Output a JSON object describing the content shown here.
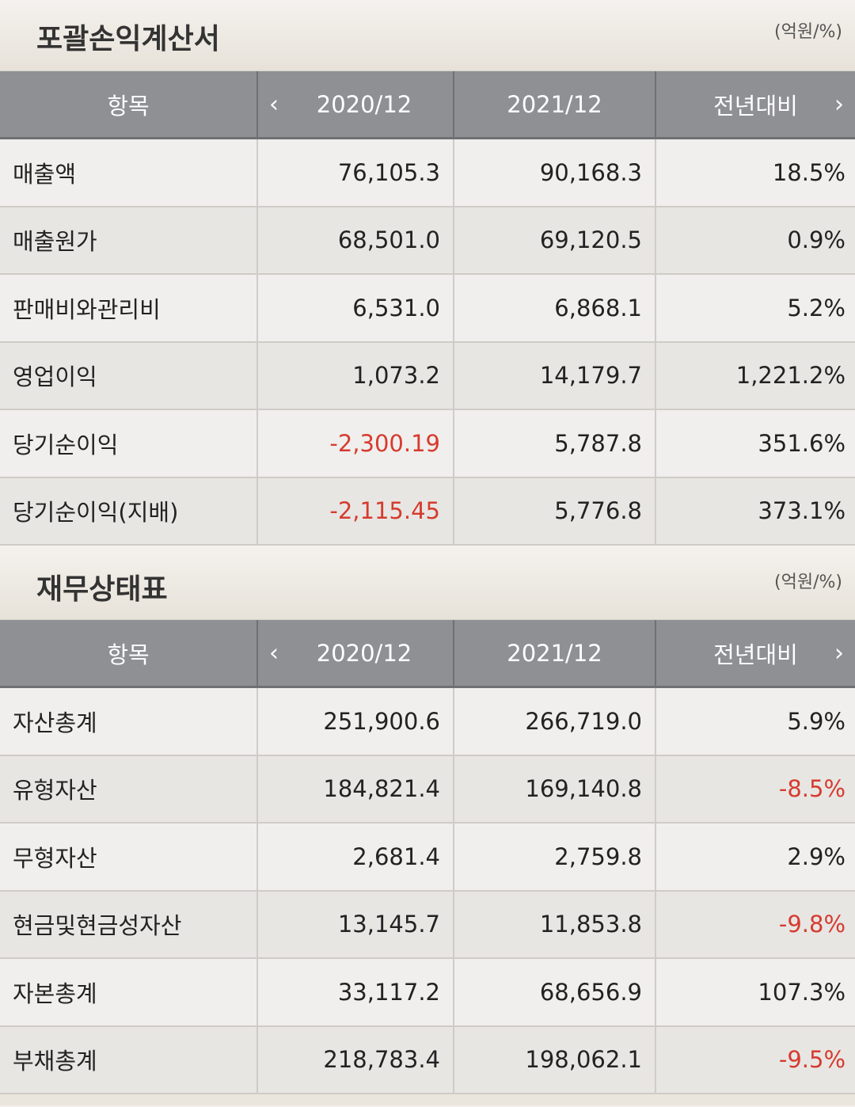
{
  "income": {
    "title": "포괄손익계산서",
    "unit": "(억원/%)",
    "headers": {
      "item": "항목",
      "col1": "2020/12",
      "col2": "2021/12",
      "col3": "전년대비"
    },
    "rows": [
      {
        "label": "매출액",
        "v1": "76,105.3",
        "v2": "90,168.3",
        "v3": "18.5%"
      },
      {
        "label": "매출원가",
        "v1": "68,501.0",
        "v2": "69,120.5",
        "v3": "0.9%"
      },
      {
        "label": "판매비와관리비",
        "v1": "6,531.0",
        "v2": "6,868.1",
        "v3": "5.2%"
      },
      {
        "label": "영업이익",
        "v1": "1,073.2",
        "v2": "14,179.7",
        "v3": "1,221.2%"
      },
      {
        "label": "당기순이익",
        "v1": "-2,300.19",
        "v2": "5,787.8",
        "v3": "351.6%"
      },
      {
        "label": "당기순이익(지배)",
        "v1": "-2,115.45",
        "v2": "5,776.8",
        "v3": "373.1%"
      }
    ]
  },
  "balance": {
    "title": "재무상태표",
    "unit": "(억원/%)",
    "headers": {
      "item": "항목",
      "col1": "2020/12",
      "col2": "2021/12",
      "col3": "전년대비"
    },
    "rows": [
      {
        "label": "자산총계",
        "v1": "251,900.6",
        "v2": "266,719.0",
        "v3": "5.9%"
      },
      {
        "label": "유형자산",
        "v1": "184,821.4",
        "v2": "169,140.8",
        "v3": "-8.5%"
      },
      {
        "label": "무형자산",
        "v1": "2,681.4",
        "v2": "2,759.8",
        "v3": "2.9%"
      },
      {
        "label": "현금및현금성자산",
        "v1": "13,145.7",
        "v2": "11,853.8",
        "v3": "-9.8%"
      },
      {
        "label": "자본총계",
        "v1": "33,117.2",
        "v2": "68,656.9",
        "v3": "107.3%"
      },
      {
        "label": "부채총계",
        "v1": "218,783.4",
        "v2": "198,062.1",
        "v3": "-9.5%"
      }
    ]
  },
  "icons": {
    "prev": "chevron-left-icon",
    "next": "chevron-right-icon"
  },
  "colors": {
    "negative": "#d63b2f",
    "header_bg": "#8f9094"
  }
}
